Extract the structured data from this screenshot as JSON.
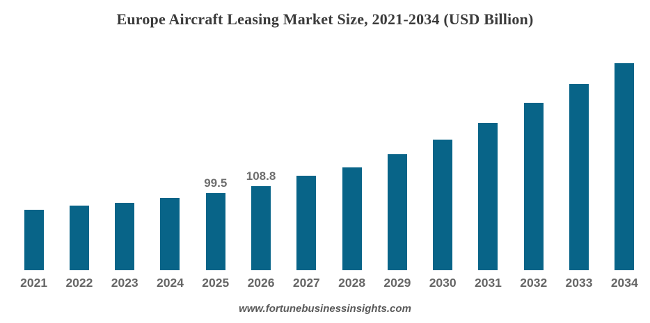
{
  "title": "Europe Aircraft Leasing Market Size, 2021-2034 (USD Billion)",
  "footer": "www.fortunebusinessinsights.com",
  "colors": {
    "bar": "#086488",
    "title_text": "#3b3b3b",
    "axis_label": "#666666",
    "data_label": "#6e6e6e",
    "footer_text": "#5a5a5a",
    "background": "#ffffff"
  },
  "chart_data": {
    "type": "bar",
    "title": "Europe Aircraft Leasing Market Size, 2021-2034 (USD Billion)",
    "categories": [
      "2021",
      "2022",
      "2023",
      "2024",
      "2025",
      "2026",
      "2027",
      "2028",
      "2029",
      "2030",
      "2031",
      "2032",
      "2033",
      "2034"
    ],
    "values": [
      78.2,
      83.5,
      87.2,
      93.5,
      99.5,
      108.8,
      122.1,
      133.0,
      150.0,
      168.8,
      190.4,
      216.4,
      240.7,
      267.6
    ],
    "data_labels": {
      "2025": "99.5",
      "2026": "108.8"
    },
    "xlabel": "",
    "ylabel": "",
    "unit": "USD Billion",
    "ylim": [
      0,
      296
    ],
    "grid": false,
    "legend": false,
    "source": "www.fortunebusinessinsights.com"
  }
}
